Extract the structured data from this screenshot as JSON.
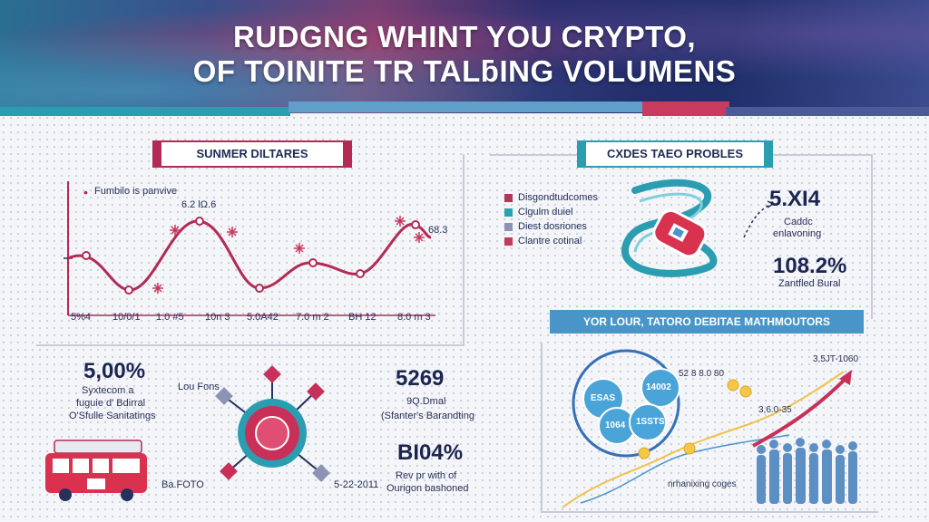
{
  "header": {
    "line1": "RUDGNG WHINT YOU CRYPTO,",
    "line2": "OF TOINITE TR TALƃING VOLUMENS"
  },
  "summer_panel": {
    "banner": "SUNMER DILTARES",
    "legend": "Fumbilo is panvive",
    "peak_label": "6.2 lΩ.6",
    "right_label": "68.3",
    "x_labels": [
      "5%4",
      "10/0/1",
      "1.0 #5",
      "10n 3",
      "5.0A42",
      "7.0 m 2",
      "BH 12",
      "8.0 m 3"
    ]
  },
  "exchange_panel": {
    "banner": "CXDES TAEO PROBLES",
    "legend": [
      {
        "label": "Disgondtudcomes",
        "color": "#b8335a"
      },
      {
        "label": "Clgulm duiel",
        "color": "#2aa3b0"
      },
      {
        "label": "Diest dosriones",
        "color": "#8c93b5"
      },
      {
        "label": "Clantre cotinal",
        "color": "#c23b5b"
      }
    ],
    "stat1_value": "5.XI4",
    "stat1_label_line1": "Caddc",
    "stat1_label_line2": "enlavoning",
    "stat2_value": "108.2%",
    "stat2_label": "Zantfled Bural"
  },
  "left_stats": {
    "value": "5,00%",
    "line1": "Syxtecom a",
    "line2": "fuguie d' Bdirral",
    "line3": "O'Sfulle Sanitatings",
    "caption_top": "Lou Fons",
    "caption_bottom": "Ba.FOTO"
  },
  "middle_stats": {
    "value1": "5269",
    "value1_line1": "9Q.Dmal",
    "value1_line2": "(Sfanter's Barandting",
    "value2": "BI04%",
    "value2_line1": "Rev pr with of",
    "value2_line2": "Ourigon bashoned",
    "caption_bottom": "5-22-2011"
  },
  "network_panel": {
    "banner": "YOR LOUR, TATORO DEBITAE MATHMOUTORS",
    "bubbles": [
      "ESAS",
      "14002",
      "1064",
      "1SSTS"
    ],
    "label_top": "52 8 8.0 80",
    "label_right": "3,5JT-1060",
    "label_mid": "3,6.0-35",
    "label_bottom": "nrhanixing coges"
  },
  "colors": {
    "crimson": "#b32a55",
    "teal": "#2b9db0",
    "navy": "#1c2450",
    "sky": "#4a95c8"
  }
}
